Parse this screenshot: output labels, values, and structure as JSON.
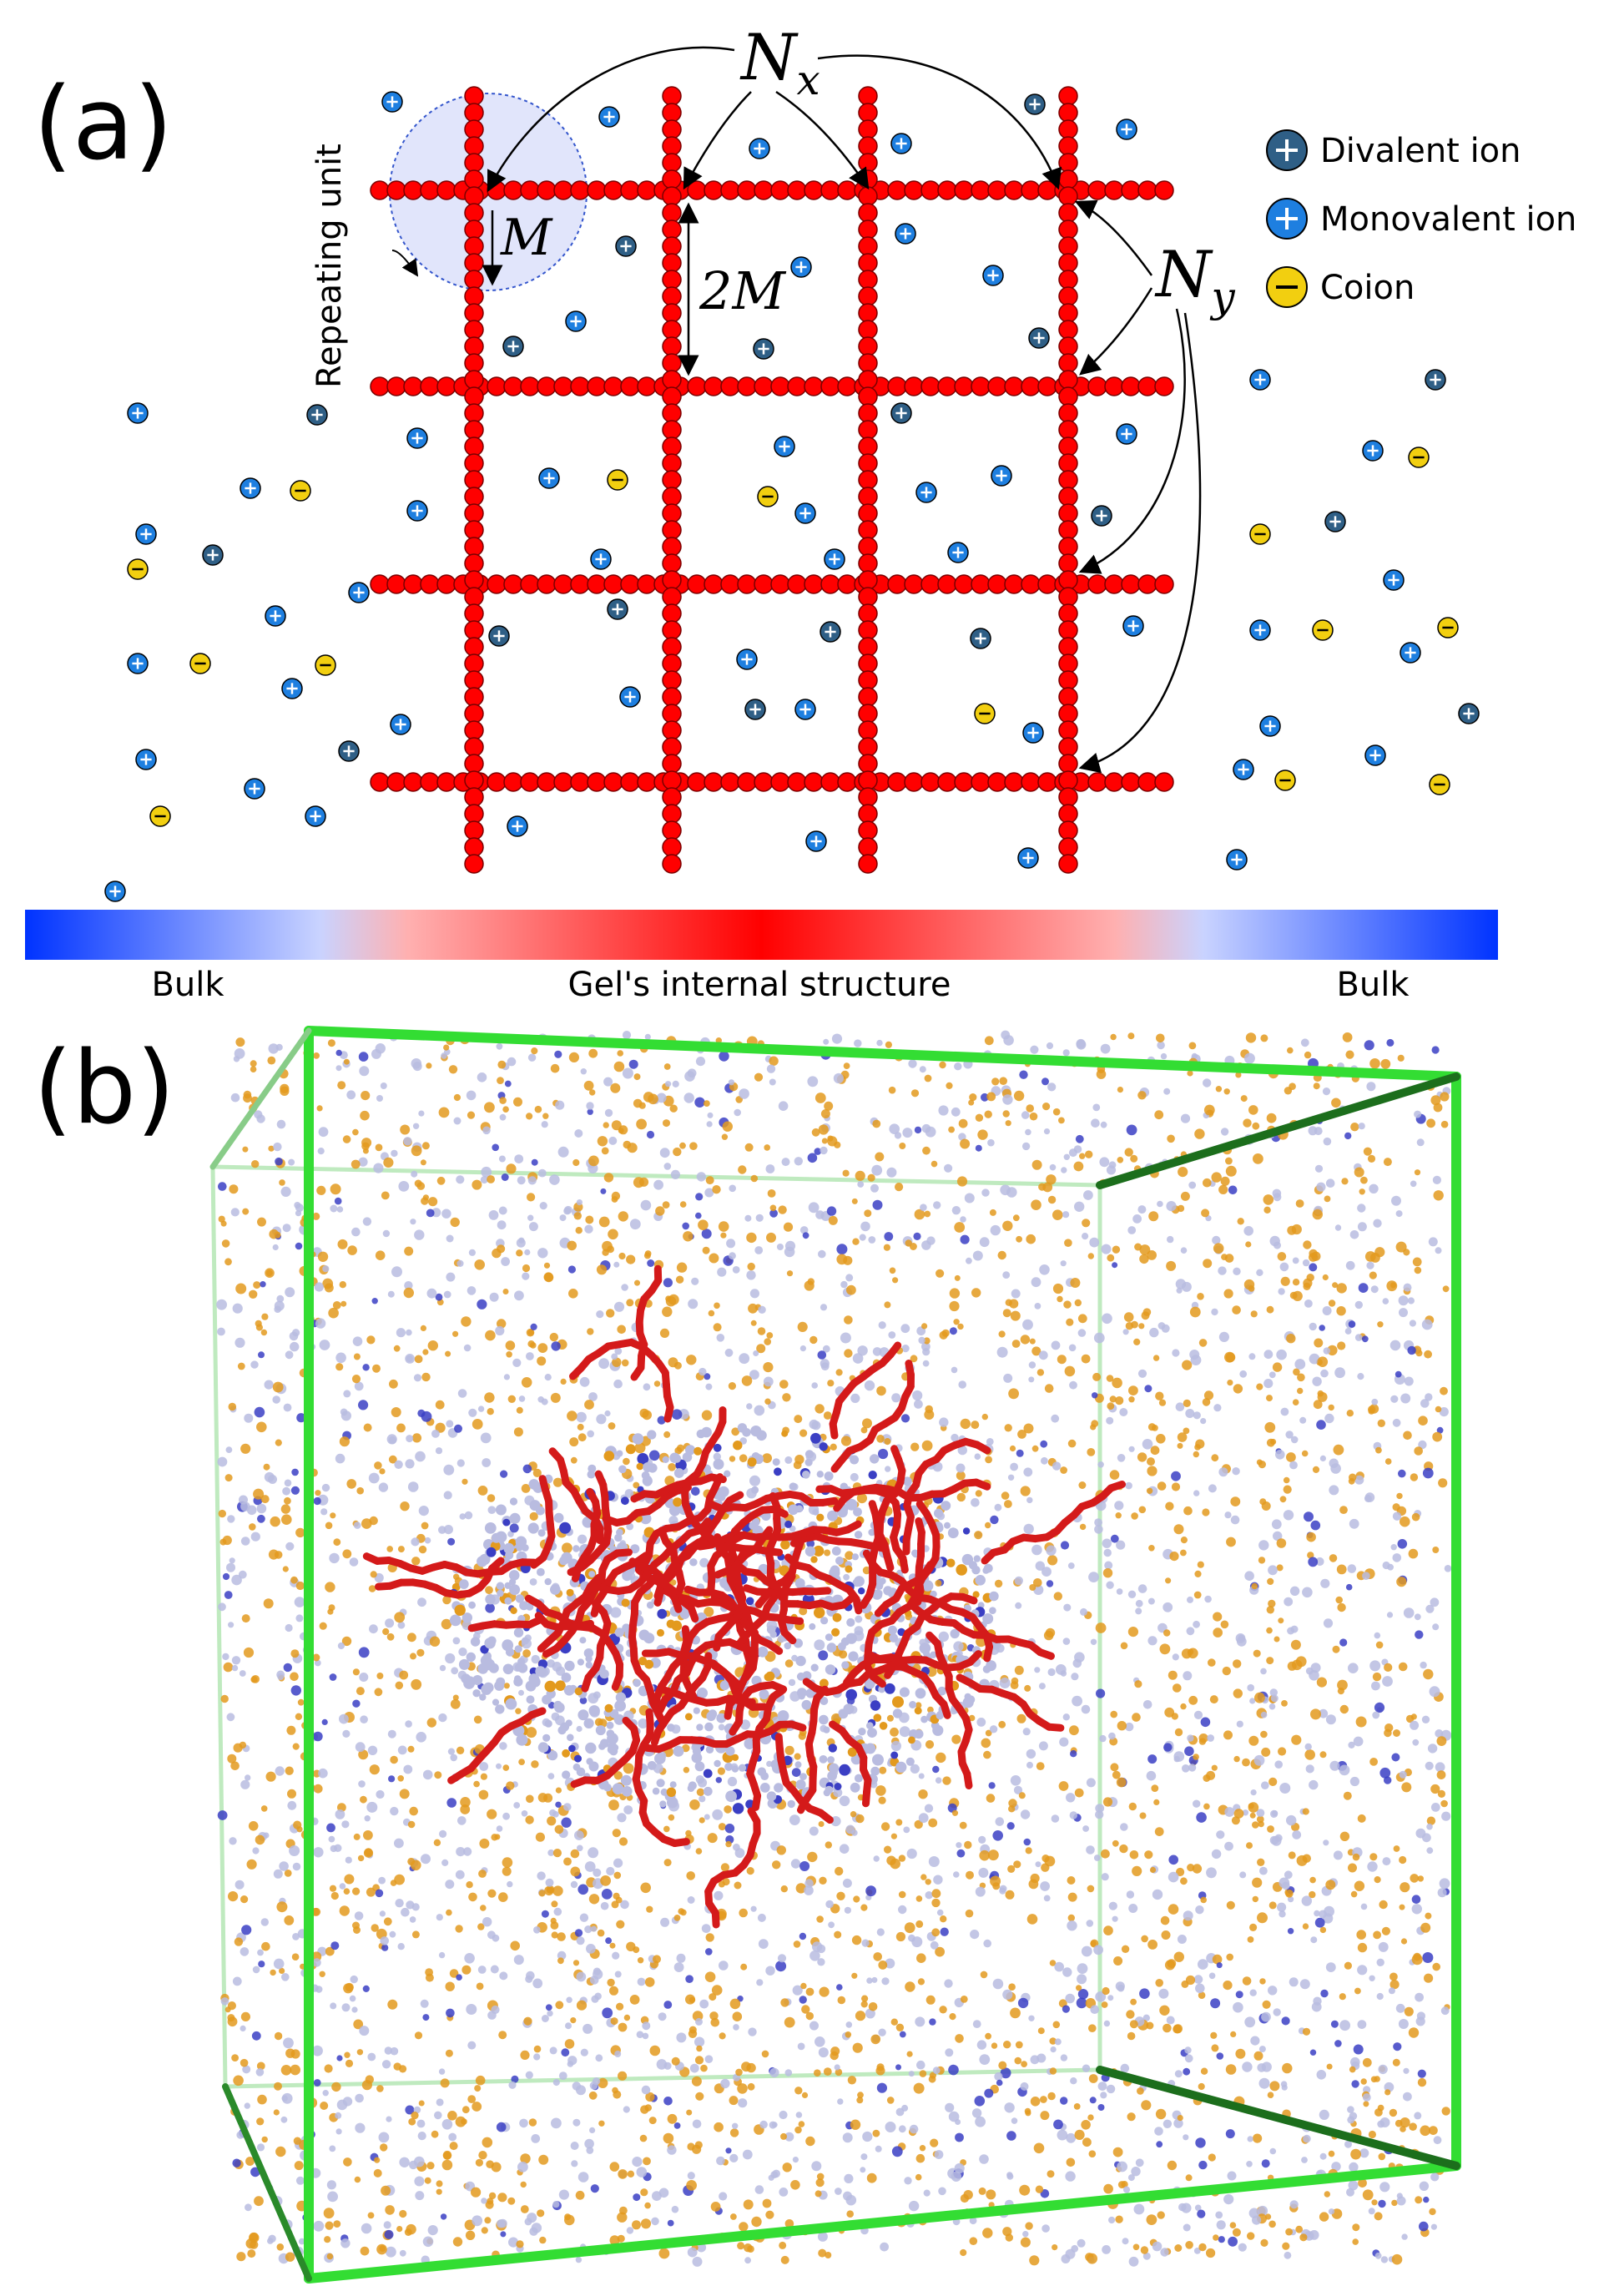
{
  "panel_a": {
    "label": "(a)",
    "nx_label": "N",
    "nx_sub": "x",
    "ny_label": "N",
    "ny_sub": "y",
    "m_label": "M",
    "two_m_label": "2M",
    "repeating_unit_label": "Repeating unit",
    "legend": [
      {
        "symbol": "+",
        "label": "Divalent ion",
        "color": "#2f5f86"
      },
      {
        "symbol": "+",
        "label": "Monovalent ion",
        "color": "#1e7fe0"
      },
      {
        "symbol": "-",
        "label": "Coion",
        "color": "#f2cf10"
      }
    ],
    "gradient": {
      "left_label": "Bulk",
      "center_label": "Gel's internal structure",
      "right_label": "Bulk",
      "edge_color": "#0033ff",
      "center_color": "#ff0000"
    },
    "bead_color": "#ff0000"
  },
  "panel_b": {
    "label": "(b)",
    "box_color": "#33dd33",
    "particle_colors": [
      "#e39a1e",
      "#b9bce0",
      "#3b3fc4"
    ],
    "gel_color": "#d41a1a"
  }
}
